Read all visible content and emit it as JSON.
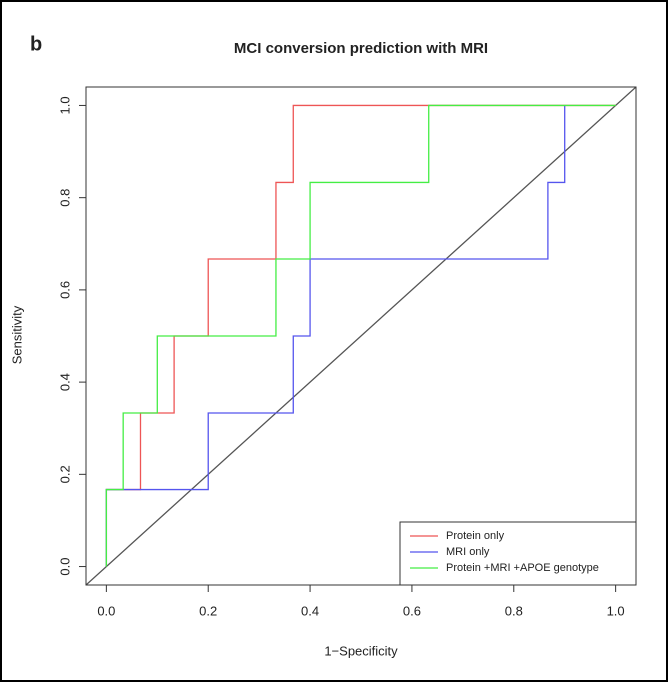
{
  "chart_data": {
    "type": "step",
    "panel_label": "b",
    "title": "MCI conversion prediction with MRI",
    "x_label": "1−Specificity",
    "y_label": "Sensitivity",
    "xlim": [
      -0.04,
      1.04
    ],
    "ylim": [
      -0.04,
      1.04
    ],
    "xticks": [
      {
        "value": 0,
        "label": "0.0"
      },
      {
        "value": 0.2,
        "label": "0.2"
      },
      {
        "value": 0.4,
        "label": "0.4"
      },
      {
        "value": 0.6,
        "label": "0.6"
      },
      {
        "value": 0.8,
        "label": "0.8"
      },
      {
        "value": 1,
        "label": "1.0"
      }
    ],
    "yticks": [
      {
        "value": 0,
        "label": "0.0"
      },
      {
        "value": 0.2,
        "label": "0.2"
      },
      {
        "value": 0.4,
        "label": "0.4"
      },
      {
        "value": 0.6,
        "label": "0.6"
      },
      {
        "value": 0.8,
        "label": "0.8"
      },
      {
        "value": 1,
        "label": "1.0"
      }
    ],
    "legend": "bottomright",
    "series": [
      {
        "name": "Protein only",
        "color": "#ee5555",
        "x": [
          0,
          0,
          0.067,
          0.067,
          0.133,
          0.133,
          0.2,
          0.2,
          0.333,
          0.333,
          0.367,
          0.367,
          1
        ],
        "y": [
          0,
          0.167,
          0.167,
          0.333,
          0.333,
          0.5,
          0.5,
          0.667,
          0.667,
          0.833,
          0.833,
          1,
          1
        ]
      },
      {
        "name": "MRI only",
        "color": "#5555ee",
        "x": [
          0,
          0,
          0.2,
          0.2,
          0.367,
          0.367,
          0.4,
          0.4,
          0.867,
          0.867,
          0.9,
          0.9
        ],
        "y": [
          0,
          0.167,
          0.167,
          0.333,
          0.333,
          0.5,
          0.5,
          0.667,
          0.667,
          0.833,
          0.833,
          1
        ]
      },
      {
        "name": "Protein +MRI +APOE genotype",
        "color": "#44ee44",
        "x": [
          0,
          0,
          0.033,
          0.033,
          0.1,
          0.1,
          0.333,
          0.333,
          0.4,
          0.4,
          0.633,
          0.633,
          1
        ],
        "y": [
          0,
          0.167,
          0.167,
          0.333,
          0.333,
          0.5,
          0.5,
          0.667,
          0.667,
          0.833,
          0.833,
          1,
          1
        ]
      }
    ]
  }
}
